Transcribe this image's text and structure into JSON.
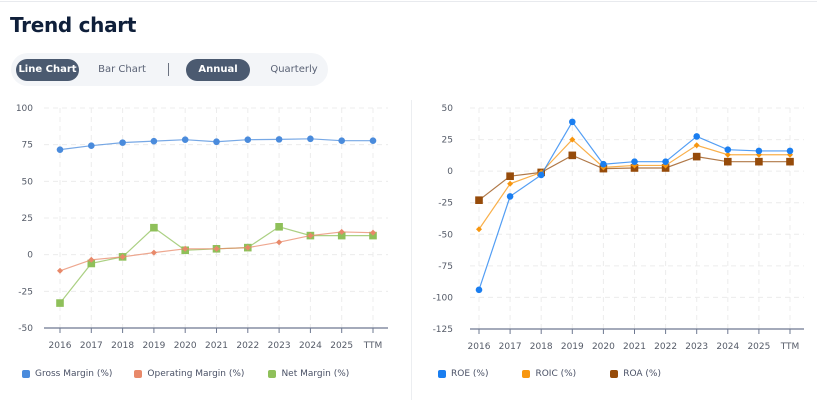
{
  "header": {
    "title": "Trend chart"
  },
  "toggles": {
    "chart_type": [
      {
        "label": "Line Chart",
        "active": true
      },
      {
        "label": "Bar Chart",
        "active": false
      }
    ],
    "period": [
      {
        "label": "Annual",
        "active": true
      },
      {
        "label": "Quarterly",
        "active": false
      }
    ]
  },
  "chart_data": [
    {
      "type": "line",
      "title": "",
      "xlabel": "",
      "ylabel": "",
      "categories": [
        "2016",
        "2017",
        "2018",
        "2019",
        "2020",
        "2021",
        "2022",
        "2023",
        "2024",
        "2025",
        "TTM"
      ],
      "ylim": [
        -50,
        100
      ],
      "yticks": [
        "100",
        "75",
        "50",
        "25",
        "0",
        "-25",
        "-50"
      ],
      "ytick_values": [
        100,
        75,
        50,
        25,
        0,
        -25,
        -50
      ],
      "grid": true,
      "legend_position": "bottom",
      "series": [
        {
          "name": "Gross Margin (%)",
          "color": "#4a8bdc",
          "marker": "circle",
          "values": [
            71.6,
            74.3,
            76.4,
            77.4,
            78.4,
            77.0,
            78.4,
            78.6,
            79.0,
            77.7,
            77.7
          ]
        },
        {
          "name": "Operating Margin (%)",
          "color": "#e8896a",
          "marker": "diamond",
          "values": [
            -11,
            -3.5,
            -1.5,
            1.4,
            4.0,
            4.0,
            4.8,
            8.5,
            13.0,
            15.5,
            15.0
          ]
        },
        {
          "name": "Net Margin (%)",
          "color": "#8fc05a",
          "marker": "square",
          "values": [
            -33,
            -6,
            -1.5,
            18.4,
            3.0,
            4.0,
            4.8,
            19.0,
            13.0,
            13.0,
            13.0
          ]
        }
      ]
    },
    {
      "type": "line",
      "title": "",
      "xlabel": "",
      "ylabel": "",
      "categories": [
        "2016",
        "2017",
        "2018",
        "2019",
        "2020",
        "2021",
        "2022",
        "2023",
        "2024",
        "2025",
        "TTM"
      ],
      "ylim": [
        -125,
        50
      ],
      "yticks": [
        "50",
        "25",
        "0",
        "-25",
        "-50",
        "-75",
        "-100",
        "-125"
      ],
      "ytick_values": [
        50,
        25,
        0,
        -25,
        -50,
        -75,
        -100,
        -125
      ],
      "grid": true,
      "legend_position": "bottom",
      "series": [
        {
          "name": "ROE (%)",
          "color": "#1a7ef0",
          "marker": "circle",
          "values": [
            -94,
            -20,
            -3,
            39,
            5.5,
            7.5,
            7.5,
            27.5,
            17,
            16,
            16
          ]
        },
        {
          "name": "ROIC (%)",
          "color": "#f7960f",
          "marker": "diamond",
          "values": [
            -46,
            -10,
            -1,
            25,
            3,
            4.5,
            4.5,
            20.5,
            13,
            13,
            13
          ]
        },
        {
          "name": "ROA (%)",
          "color": "#964b0a",
          "marker": "square",
          "values": [
            -23,
            -4,
            -1,
            12.5,
            2,
            2.5,
            2.5,
            11.5,
            7.5,
            7.5,
            7.5
          ]
        }
      ]
    }
  ]
}
